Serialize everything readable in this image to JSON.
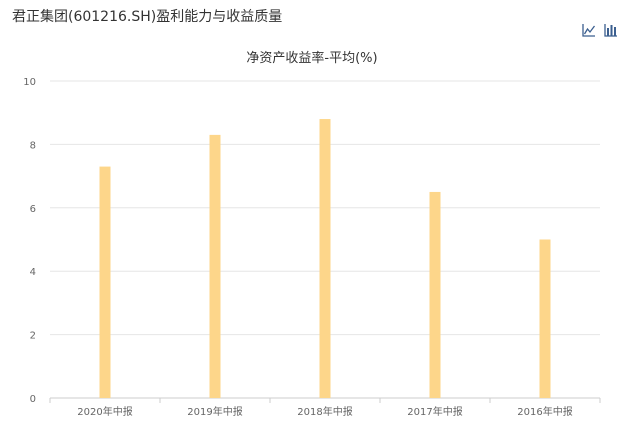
{
  "header": {
    "title": "君正集团(601216.SH)盈利能力与收益质量"
  },
  "toolbar": {
    "icons": [
      "line-chart-icon",
      "bar-chart-icon"
    ]
  },
  "colors": {
    "bar": "#FDD68A",
    "grid": "#E6E6E6",
    "axis": "#CCCCCC",
    "icon": "#3B5F8F"
  },
  "chart_data": {
    "type": "bar",
    "title": "净资产收益率-平均(%)",
    "xlabel": "",
    "ylabel": "",
    "categories": [
      "2020年中报",
      "2019年中报",
      "2018年中报",
      "2017年中报",
      "2016年中报"
    ],
    "values": [
      7.3,
      8.3,
      8.8,
      6.5,
      5.0
    ],
    "ylim": [
      0,
      10
    ],
    "yticks": [
      0,
      2,
      4,
      6,
      8,
      10
    ],
    "grid": true,
    "legend": "none"
  }
}
